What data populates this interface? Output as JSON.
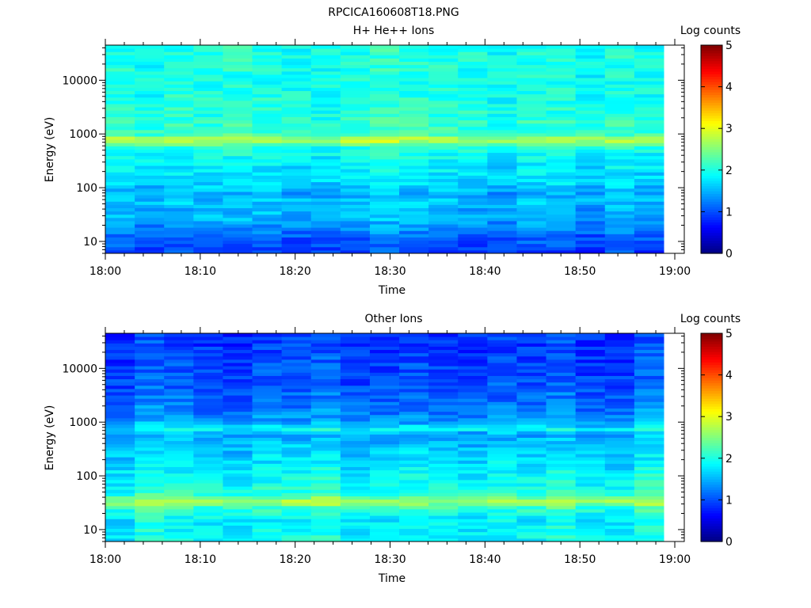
{
  "figure": {
    "title": "RPCICA160608T18.PNG"
  },
  "chart_data": [
    {
      "type": "heatmap",
      "title": "H+ He++ Ions",
      "xlabel": "Time",
      "ylabel": "Energy (eV)",
      "x_ticks": [
        "18:00",
        "18:10",
        "18:20",
        "18:30",
        "18:40",
        "18:50",
        "19:00"
      ],
      "y_ticks": [
        "10",
        "100",
        "1000",
        "10000"
      ],
      "y_scale": "log",
      "colorbar": {
        "label": "Log counts",
        "range": [
          0,
          5
        ],
        "ticks": [
          "0",
          "1",
          "2",
          "3",
          "4",
          "5"
        ]
      },
      "x_range_minutes": [
        0,
        61
      ],
      "y_range_eV": [
        6,
        45000
      ],
      "profile_log_counts": [
        [
          7,
          0.95
        ],
        [
          12,
          1.1
        ],
        [
          20,
          1.35
        ],
        [
          30,
          1.55
        ],
        [
          40,
          1.45
        ],
        [
          55,
          1.6
        ],
        [
          80,
          1.45
        ],
        [
          120,
          1.7
        ],
        [
          200,
          1.75
        ],
        [
          350,
          1.85
        ],
        [
          550,
          2.0
        ],
        [
          780,
          2.8
        ],
        [
          1000,
          2.15
        ],
        [
          2000,
          2.05
        ],
        [
          5000,
          2.0
        ],
        [
          10000,
          1.95
        ],
        [
          20000,
          2.0
        ],
        [
          45000,
          2.0
        ]
      ]
    },
    {
      "type": "heatmap",
      "title": "Other Ions",
      "xlabel": "Time",
      "ylabel": "Energy (eV)",
      "x_ticks": [
        "18:00",
        "18:10",
        "18:20",
        "18:30",
        "18:40",
        "18:50",
        "19:00"
      ],
      "y_ticks": [
        "10",
        "100",
        "1000",
        "10000"
      ],
      "y_scale": "log",
      "colorbar": {
        "label": "Log counts",
        "range": [
          0,
          5
        ],
        "ticks": [
          "0",
          "1",
          "2",
          "3",
          "4",
          "5"
        ]
      },
      "x_range_minutes": [
        0,
        61
      ],
      "y_range_eV": [
        6,
        45000
      ],
      "profile_log_counts": [
        [
          7,
          1.9
        ],
        [
          15,
          1.85
        ],
        [
          25,
          2.1
        ],
        [
          33,
          2.8
        ],
        [
          45,
          2.1
        ],
        [
          70,
          1.95
        ],
        [
          150,
          1.8
        ],
        [
          300,
          1.65
        ],
        [
          600,
          1.45
        ],
        [
          750,
          1.9
        ],
        [
          1000,
          1.4
        ],
        [
          2000,
          1.2
        ],
        [
          5000,
          1.05
        ],
        [
          10000,
          1.0
        ],
        [
          20000,
          0.95
        ],
        [
          45000,
          0.9
        ]
      ]
    }
  ]
}
